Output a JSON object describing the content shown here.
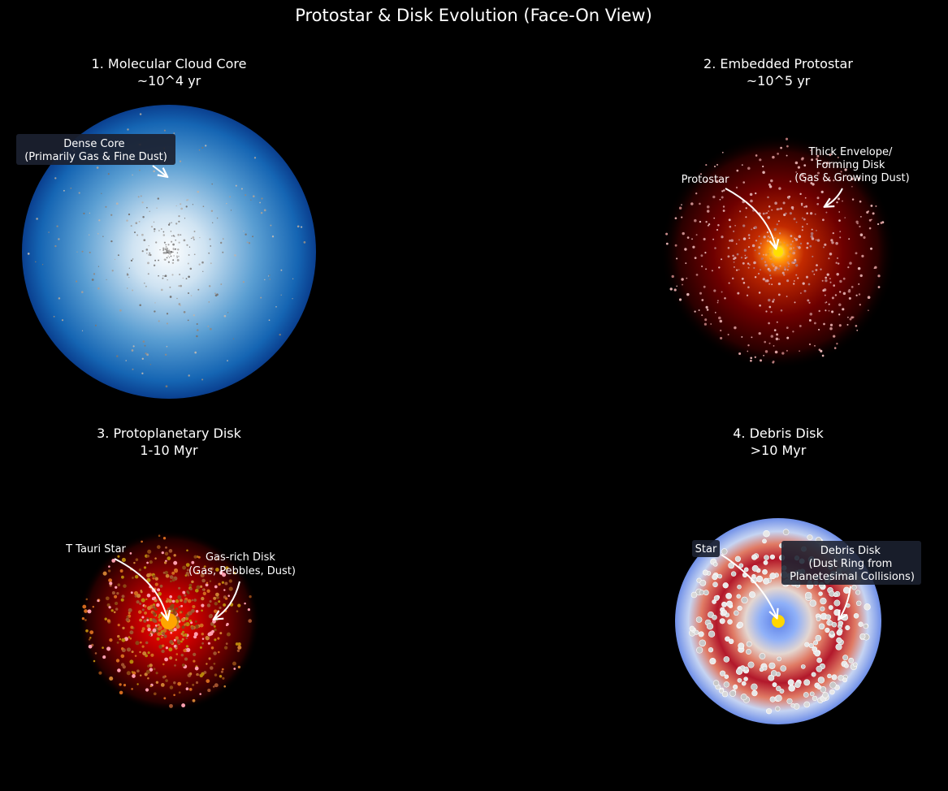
{
  "title": "Protostar & Disk Evolution (Face-On View)",
  "panels": [
    {
      "title_line1": "1. Molecular Cloud Core",
      "title_line2": "~10^4 yr",
      "labels": [
        {
          "lines": [
            "Dense Core",
            "(Primarily Gas & Fine Dust)"
          ]
        }
      ]
    },
    {
      "title_line1": "2. Embedded Protostar",
      "title_line2": "~10^5 yr",
      "labels": [
        {
          "lines": [
            "Protostar"
          ]
        },
        {
          "lines": [
            "Thick Envelope/",
            "Forming Disk",
            "(Gas & Growing Dust)"
          ]
        }
      ]
    },
    {
      "title_line1": "3. Protoplanetary Disk",
      "title_line2": "1-10 Myr",
      "labels": [
        {
          "lines": [
            "T Tauri Star"
          ]
        },
        {
          "lines": [
            "Gas-rich Disk",
            "(Gas, Pebbles, Dust)"
          ]
        }
      ]
    },
    {
      "title_line1": "4. Debris Disk",
      "title_line2": ">10 Myr",
      "labels": [
        {
          "lines": [
            "Star"
          ]
        },
        {
          "lines": [
            "Debris Disk",
            "(Dust Ring from",
            "Planetesimal Collisions)"
          ]
        }
      ]
    }
  ],
  "colors": {
    "background": "#000000",
    "cloud_core": "#1565c0",
    "envelope": "#8b0000",
    "protostar": "#ffe000",
    "t_tauri_star": "#ffa500",
    "debris_ring": "#b2182b",
    "debris_edge": "#6f8fe8",
    "star": "#ffd700"
  }
}
